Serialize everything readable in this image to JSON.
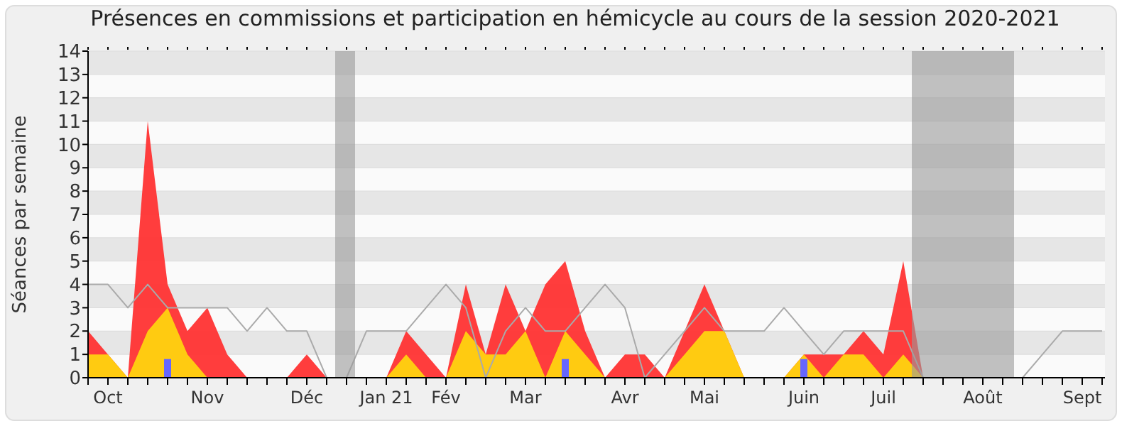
{
  "chart_data": {
    "type": "area",
    "title": "Présences en commissions et participation en hémicycle au cours de la session 2020-2021",
    "ylabel": "Séances par semaine",
    "x": [
      "2020-09-28",
      "2020-10-05",
      "2020-10-12",
      "2020-10-19",
      "2020-10-26",
      "2020-11-02",
      "2020-11-09",
      "2020-11-16",
      "2020-11-23",
      "2020-11-30",
      "2020-12-07",
      "2020-12-14",
      "2020-12-21",
      "2020-12-28",
      "2021-01-04",
      "2021-01-11",
      "2021-01-18",
      "2021-01-25",
      "2021-02-01",
      "2021-02-08",
      "2021-02-15",
      "2021-02-22",
      "2021-03-01",
      "2021-03-08",
      "2021-03-15",
      "2021-03-22",
      "2021-03-29",
      "2021-04-05",
      "2021-04-12",
      "2021-04-19",
      "2021-04-26",
      "2021-05-03",
      "2021-05-10",
      "2021-05-17",
      "2021-05-24",
      "2021-05-31",
      "2021-06-07",
      "2021-06-14",
      "2021-06-21",
      "2021-06-28",
      "2021-07-05",
      "2021-07-12",
      "2021-07-19",
      "2021-07-26",
      "2021-08-02",
      "2021-08-09",
      "2021-08-16",
      "2021-08-23",
      "2021-08-30",
      "2021-09-06",
      "2021-09-13",
      "2021-09-20"
    ],
    "series": [
      {
        "color": "#ff3333",
        "values": [
          2,
          1,
          0,
          11,
          4,
          2,
          3,
          1,
          0,
          0,
          0,
          1,
          0,
          0,
          0,
          0,
          2,
          1,
          0,
          4,
          1,
          4,
          2,
          4,
          5,
          2,
          0,
          1,
          1,
          0,
          2,
          4,
          2,
          0,
          0,
          0,
          1,
          1,
          1,
          2,
          1,
          5,
          0,
          0,
          0,
          0,
          0,
          0,
          0,
          0,
          0,
          0
        ]
      },
      {
        "type": "area",
        "color": "#ffd30f",
        "values": [
          1,
          1,
          0,
          2,
          3,
          1,
          0,
          0,
          0,
          0,
          0,
          0,
          0,
          0,
          0,
          0,
          1,
          0,
          0,
          2,
          1,
          1,
          2,
          0,
          2,
          1,
          0,
          0,
          0,
          0,
          1,
          2,
          2,
          0,
          0,
          0,
          1,
          0,
          1,
          1,
          0,
          1,
          0,
          0,
          0,
          0,
          0,
          0,
          0,
          0,
          0,
          0
        ]
      },
      {
        "type": "line",
        "color": "#aaaaaa",
        "values": [
          4,
          4,
          3,
          4,
          3,
          3,
          3,
          3,
          2,
          3,
          2,
          2,
          0,
          0,
          2,
          2,
          2,
          3,
          4,
          3,
          0,
          2,
          3,
          2,
          2,
          3,
          4,
          3,
          0,
          1,
          2,
          3,
          2,
          2,
          2,
          3,
          2,
          1,
          2,
          2,
          2,
          2,
          0,
          0,
          0,
          0,
          0,
          0,
          1,
          2,
          2,
          2
        ]
      },
      {
        "type": "bar",
        "color": "#6666ff",
        "values": [
          null,
          null,
          null,
          null,
          0.8,
          null,
          null,
          null,
          null,
          null,
          null,
          null,
          null,
          null,
          null,
          null,
          null,
          null,
          null,
          null,
          null,
          null,
          null,
          null,
          0.8,
          null,
          null,
          null,
          null,
          null,
          null,
          null,
          null,
          null,
          null,
          null,
          0.8,
          null,
          null,
          null,
          null,
          null,
          null,
          null,
          null,
          null,
          null,
          null,
          null,
          null,
          null,
          null
        ]
      }
    ],
    "xlim": [
      "2020-09-28",
      "2021-09-21"
    ],
    "xticks": [
      {
        "value": "2020-09-28",
        "label": null
      },
      {
        "value": "2020-10-05",
        "label": "Oct"
      },
      {
        "value": "2020-10-12",
        "label": null
      },
      {
        "value": "2020-10-19",
        "label": null
      },
      {
        "value": "2020-10-26",
        "label": null
      },
      {
        "value": "2020-11-02",
        "label": null
      },
      {
        "value": "2020-11-09",
        "label": "Nov"
      },
      {
        "value": "2020-11-16",
        "label": null
      },
      {
        "value": "2020-11-23",
        "label": null
      },
      {
        "value": "2020-11-30",
        "label": null
      },
      {
        "value": "2020-12-07",
        "label": null
      },
      {
        "value": "2020-12-14",
        "label": "Déc"
      },
      {
        "value": "2020-12-21",
        "label": null
      },
      {
        "value": "2020-12-28",
        "label": null
      },
      {
        "value": "2021-01-04",
        "label": null
      },
      {
        "value": "2021-01-11",
        "label": "Jan 21"
      },
      {
        "value": "2021-01-18",
        "label": null
      },
      {
        "value": "2021-01-25",
        "label": null
      },
      {
        "value": "2021-02-01",
        "label": "Fév"
      },
      {
        "value": "2021-02-08",
        "label": null
      },
      {
        "value": "2021-02-15",
        "label": null
      },
      {
        "value": "2021-02-22",
        "label": null
      },
      {
        "value": "2021-03-01",
        "label": "Mar"
      },
      {
        "value": "2021-03-08",
        "label": null
      },
      {
        "value": "2021-03-15",
        "label": null
      },
      {
        "value": "2021-03-22",
        "label": null
      },
      {
        "value": "2021-03-29",
        "label": null
      },
      {
        "value": "2021-04-05",
        "label": "Avr"
      },
      {
        "value": "2021-04-12",
        "label": null
      },
      {
        "value": "2021-04-19",
        "label": null
      },
      {
        "value": "2021-04-26",
        "label": null
      },
      {
        "value": "2021-05-03",
        "label": "Mai"
      },
      {
        "value": "2021-05-10",
        "label": null
      },
      {
        "value": "2021-05-17",
        "label": null
      },
      {
        "value": "2021-05-24",
        "label": null
      },
      {
        "value": "2021-05-31",
        "label": null
      },
      {
        "value": "2021-06-07",
        "label": "Juin"
      },
      {
        "value": "2021-06-14",
        "label": null
      },
      {
        "value": "2021-06-21",
        "label": null
      },
      {
        "value": "2021-06-28",
        "label": null
      },
      {
        "value": "2021-07-05",
        "label": "Juil"
      },
      {
        "value": "2021-07-12",
        "label": null
      },
      {
        "value": "2021-07-19",
        "label": null
      },
      {
        "value": "2021-07-26",
        "label": null
      },
      {
        "value": "2021-08-02",
        "label": null
      },
      {
        "value": "2021-08-09",
        "label": "Août"
      },
      {
        "value": "2021-08-16",
        "label": null
      },
      {
        "value": "2021-08-23",
        "label": null
      },
      {
        "value": "2021-08-30",
        "label": null
      },
      {
        "value": "2021-09-06",
        "label": null
      },
      {
        "value": "2021-09-13",
        "label": "Sept"
      },
      {
        "value": "2021-09-20",
        "label": null
      }
    ],
    "ylim": [
      0,
      14
    ],
    "yticks": [
      0,
      1,
      2,
      3,
      4,
      5,
      6,
      7,
      8,
      9,
      10,
      11,
      12,
      13,
      14
    ],
    "grid": "y",
    "bands": [
      {
        "axis": "x",
        "from": "2020-12-24",
        "to": "2020-12-31",
        "color": "#999999"
      },
      {
        "axis": "x",
        "from": "2021-07-15",
        "to": "2021-08-20",
        "color": "#999999"
      }
    ]
  }
}
